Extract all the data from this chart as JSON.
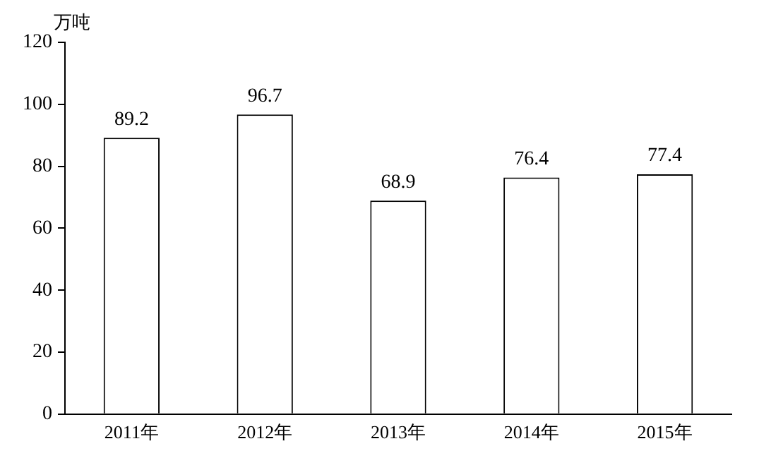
{
  "chart_data": {
    "type": "bar",
    "ylabel": "万吨",
    "categories": [
      "2011年",
      "2012年",
      "2013年",
      "2014年",
      "2015年"
    ],
    "values": [
      89.2,
      96.7,
      68.9,
      76.4,
      77.4
    ],
    "color": "#ffffff",
    "ylim": [
      0,
      120
    ],
    "yticks": [
      0,
      20,
      40,
      60,
      80,
      100,
      120
    ],
    "grid": false,
    "data_labels": true,
    "legend": false
  }
}
